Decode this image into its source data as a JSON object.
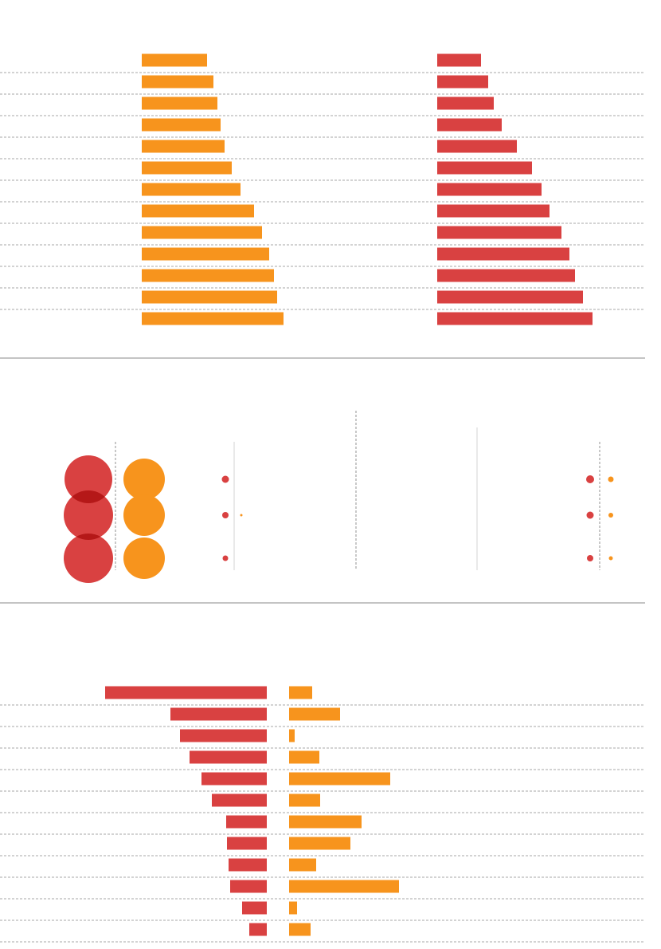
{
  "colors": {
    "orange": "#F7941D",
    "red": "#D94141",
    "overlap": "#B51818",
    "grid": "#8a8a8a"
  },
  "chart_data": [
    {
      "type": "bar",
      "orientation": "horizontal",
      "categories": [
        "",
        "",
        "",
        "",
        "",
        "",
        "",
        "",
        "",
        "",
        "",
        "",
        ""
      ],
      "series": [
        {
          "color": "#F7941D",
          "values": [
            82,
            90,
            95,
            99,
            104,
            113,
            124,
            141,
            151,
            160,
            166,
            170,
            178
          ]
        },
        {
          "color": "#D94141",
          "values": [
            55,
            64,
            71,
            81,
            100,
            119,
            131,
            141,
            156,
            166,
            173,
            183,
            195
          ]
        }
      ],
      "xlim": [
        0,
        260
      ]
    },
    {
      "type": "scatter",
      "points": [
        {
          "row": 0,
          "red_size": 30,
          "orange_size": 26,
          "red_dot": 4.5,
          "orange_dot": 0,
          "right_red_dot": 5,
          "right_orange_dot": 3.5
        },
        {
          "row": 1,
          "red_size": 31,
          "orange_size": 26,
          "red_dot": 4,
          "orange_dot": 1.5,
          "right_red_dot": 4.5,
          "right_orange_dot": 3
        },
        {
          "row": 2,
          "red_size": 31,
          "orange_size": 26,
          "red_dot": 3.5,
          "orange_dot": 0,
          "right_red_dot": 4,
          "right_orange_dot": 2.5
        }
      ]
    },
    {
      "type": "bar",
      "orientation": "diverging",
      "categories": [
        "",
        "",
        "",
        "",
        "",
        "",
        "",
        "",
        "",
        "",
        "",
        ""
      ],
      "series": [
        {
          "color": "#D94141",
          "values": [
            203,
            121,
            109,
            97,
            82,
            69,
            51,
            50,
            48,
            46,
            31,
            22
          ]
        },
        {
          "color": "#F7941D",
          "values": [
            29,
            64,
            7,
            38,
            127,
            39,
            91,
            77,
            34,
            138,
            10,
            27
          ]
        }
      ]
    }
  ]
}
